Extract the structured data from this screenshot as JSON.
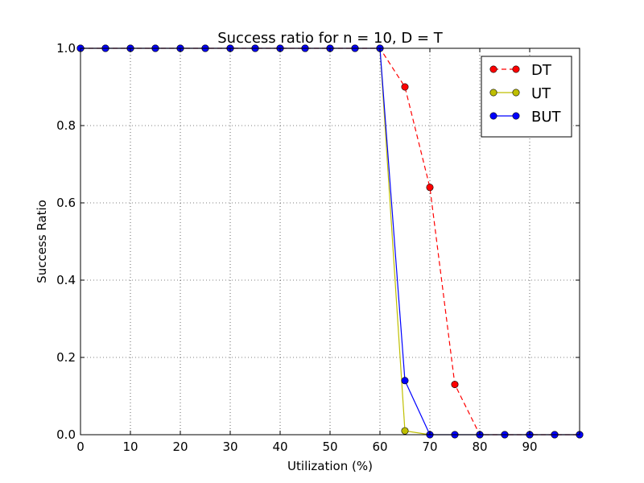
{
  "chart_data": {
    "type": "line",
    "title": "Success ratio for n = 10, D = T",
    "xlabel": "Utilization (%)",
    "ylabel": "Success Ratio",
    "xlim": [
      0,
      100
    ],
    "ylim": [
      0,
      1
    ],
    "xticks": [
      0,
      10,
      20,
      30,
      40,
      50,
      60,
      70,
      80,
      90
    ],
    "yticks": [
      0.0,
      0.2,
      0.4,
      0.6,
      0.8,
      1.0
    ],
    "xtick_labels": [
      "0",
      "10",
      "20",
      "30",
      "40",
      "50",
      "60",
      "70",
      "80",
      "90"
    ],
    "ytick_labels": [
      "0.0",
      "0.2",
      "0.4",
      "0.6",
      "0.8",
      "1.0"
    ],
    "grid": true,
    "legend_position": "top-right",
    "x": [
      0,
      5,
      10,
      15,
      20,
      25,
      30,
      35,
      40,
      45,
      50,
      55,
      60,
      65,
      70,
      75,
      80,
      85,
      90,
      95,
      100
    ],
    "series": [
      {
        "name": "DT",
        "color": "#ff0000",
        "style": "dashed",
        "values": [
          1,
          1,
          1,
          1,
          1,
          1,
          1,
          1,
          1,
          1,
          1,
          1,
          1,
          0.9,
          0.64,
          0.13,
          0,
          0,
          0,
          0,
          0
        ]
      },
      {
        "name": "UT",
        "color": "#bfbf00",
        "style": "solid",
        "values": [
          1,
          1,
          1,
          1,
          1,
          1,
          1,
          1,
          1,
          1,
          1,
          1,
          1,
          0.01,
          0,
          0,
          0,
          0,
          0,
          0,
          0
        ]
      },
      {
        "name": "BUT",
        "color": "#0000ff",
        "style": "solid",
        "values": [
          1,
          1,
          1,
          1,
          1,
          1,
          1,
          1,
          1,
          1,
          1,
          1,
          1,
          0.14,
          0,
          0,
          0,
          0,
          0,
          0,
          0
        ]
      }
    ]
  }
}
